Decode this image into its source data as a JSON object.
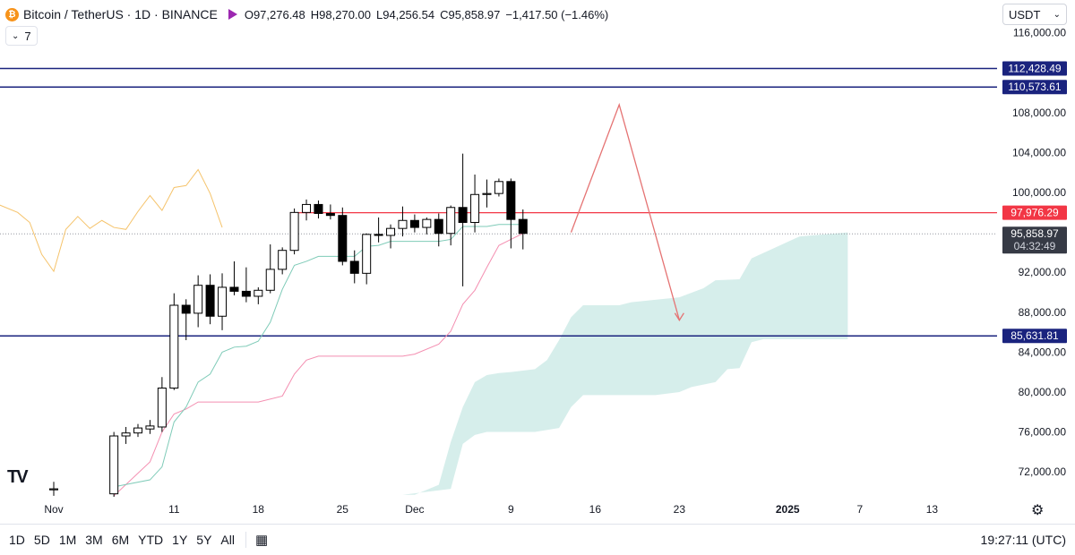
{
  "header": {
    "symbol": "Bitcoin / TetherUS · 1D · BINANCE",
    "open_label": "O",
    "open": "97,276.48",
    "high_label": "H",
    "high": "98,270.00",
    "low_label": "L",
    "low": "94,256.54",
    "close_label": "C",
    "close": "95,858.97",
    "change": "−1,417.50 (−1.46%)",
    "coin_glyph": "₿",
    "indicators_label": "7",
    "indicators_icon": "chevron-down-icon"
  },
  "currency": {
    "label": "USDT",
    "icon": "chevron-down-icon"
  },
  "toolbar": {
    "timeframes": [
      "1D",
      "5D",
      "1M",
      "3M",
      "6M",
      "YTD",
      "1Y",
      "5Y",
      "All"
    ],
    "calendar_icon": "calendar-range-icon",
    "clock": "19:27:11 (UTC)",
    "settings_icon": "gear-icon",
    "logo": "TV"
  },
  "colors": {
    "up_body": "#ffffff",
    "down_body": "#000000",
    "wick": "#000000",
    "horizontal_level": "#1a237e",
    "resistance": "#f23645",
    "tenkan": "#7fcbb8",
    "kijun": "#f48fb1",
    "chikou": "#f5c36b",
    "cloud": "#d6eeeb",
    "arrow": "#e57373",
    "price_badge": "#363a45"
  },
  "chart_data": {
    "type": "candlestick",
    "ylim": [
      69500,
      117500
    ],
    "y_ticks": [
      72000,
      76000,
      80000,
      84000,
      88000,
      92000,
      96000,
      100000,
      104000,
      108000,
      112000,
      116000
    ],
    "y_tick_labels": [
      "72,000.00",
      "76,000.00",
      "80,000.00",
      "84,000.00",
      "88,000.00",
      "92,000.00",
      "",
      "100,000.00",
      "104,000.00",
      "108,000.00",
      "",
      "116,000.00"
    ],
    "x_ticks": [
      {
        "label": "Nov",
        "day": 0
      },
      {
        "label": "11",
        "day": 10
      },
      {
        "label": "18",
        "day": 17
      },
      {
        "label": "25",
        "day": 24
      },
      {
        "label": "Dec",
        "day": 30
      },
      {
        "label": "9",
        "day": 38
      },
      {
        "label": "16",
        "day": 45
      },
      {
        "label": "23",
        "day": 52
      },
      {
        "label": "2025",
        "day": 61,
        "bold": true
      },
      {
        "label": "7",
        "day": 67
      },
      {
        "label": "13",
        "day": 73
      }
    ],
    "candles": [
      {
        "day": 0,
        "o": 70200,
        "h": 71000,
        "l": 69600,
        "c": 70300
      },
      {
        "day": 5,
        "o": 69800,
        "h": 76000,
        "l": 69500,
        "c": 75600
      },
      {
        "day": 6,
        "o": 75600,
        "h": 76500,
        "l": 74800,
        "c": 75900
      },
      {
        "day": 7,
        "o": 75900,
        "h": 76800,
        "l": 75500,
        "c": 76400
      },
      {
        "day": 8,
        "o": 76300,
        "h": 77200,
        "l": 75800,
        "c": 76600
      },
      {
        "day": 9,
        "o": 76500,
        "h": 81500,
        "l": 76000,
        "c": 80400
      },
      {
        "day": 10,
        "o": 80400,
        "h": 89900,
        "l": 80200,
        "c": 88700
      },
      {
        "day": 11,
        "o": 88700,
        "h": 89300,
        "l": 85200,
        "c": 87900
      },
      {
        "day": 12,
        "o": 87900,
        "h": 91700,
        "l": 86500,
        "c": 90700
      },
      {
        "day": 13,
        "o": 90700,
        "h": 91800,
        "l": 86800,
        "c": 87600
      },
      {
        "day": 14,
        "o": 87600,
        "h": 91900,
        "l": 86200,
        "c": 90500
      },
      {
        "day": 15,
        "o": 90500,
        "h": 93100,
        "l": 89700,
        "c": 90100
      },
      {
        "day": 16,
        "o": 90100,
        "h": 92500,
        "l": 89000,
        "c": 89600
      },
      {
        "day": 17,
        "o": 89600,
        "h": 90500,
        "l": 88800,
        "c": 90200
      },
      {
        "day": 18,
        "o": 90200,
        "h": 94800,
        "l": 89900,
        "c": 92300
      },
      {
        "day": 19,
        "o": 92300,
        "h": 94500,
        "l": 91800,
        "c": 94200
      },
      {
        "day": 20,
        "o": 94200,
        "h": 98400,
        "l": 93800,
        "c": 98000
      },
      {
        "day": 21,
        "o": 98000,
        "h": 99300,
        "l": 97200,
        "c": 98800
      },
      {
        "day": 22,
        "o": 98800,
        "h": 99200,
        "l": 97400,
        "c": 97900
      },
      {
        "day": 23,
        "o": 97900,
        "h": 98800,
        "l": 97300,
        "c": 97700
      },
      {
        "day": 24,
        "o": 97700,
        "h": 98500,
        "l": 92700,
        "c": 93100
      },
      {
        "day": 25,
        "o": 93100,
        "h": 94200,
        "l": 90900,
        "c": 91900
      },
      {
        "day": 26,
        "o": 91900,
        "h": 95900,
        "l": 90800,
        "c": 95800
      },
      {
        "day": 27,
        "o": 95800,
        "h": 97500,
        "l": 95000,
        "c": 95700
      },
      {
        "day": 28,
        "o": 95700,
        "h": 96800,
        "l": 94400,
        "c": 96400
      },
      {
        "day": 29,
        "o": 96400,
        "h": 98600,
        "l": 95600,
        "c": 97200
      },
      {
        "day": 30,
        "o": 97200,
        "h": 97800,
        "l": 96000,
        "c": 96500
      },
      {
        "day": 31,
        "o": 96500,
        "h": 97500,
        "l": 95800,
        "c": 97300
      },
      {
        "day": 32,
        "o": 97300,
        "h": 97900,
        "l": 94600,
        "c": 95900
      },
      {
        "day": 33,
        "o": 95900,
        "h": 98700,
        "l": 94700,
        "c": 98500
      },
      {
        "day": 34,
        "o": 98500,
        "h": 103900,
        "l": 90600,
        "c": 97000
      },
      {
        "day": 35,
        "o": 97000,
        "h": 101800,
        "l": 96000,
        "c": 99800
      },
      {
        "day": 36,
        "o": 99800,
        "h": 101300,
        "l": 98500,
        "c": 99900
      },
      {
        "day": 37,
        "o": 99900,
        "h": 101400,
        "l": 99600,
        "c": 101100
      },
      {
        "day": 38,
        "o": 101100,
        "h": 101400,
        "l": 94400,
        "c": 97300
      },
      {
        "day": 39,
        "o": 97300,
        "h": 98300,
        "l": 94300,
        "c": 95900
      }
    ],
    "levels": [
      {
        "name": "level-112428",
        "value": 112428.49,
        "label": "112,428.49"
      },
      {
        "name": "level-110573",
        "value": 110573.61,
        "label": "110,573.61"
      },
      {
        "name": "level-85631",
        "value": 85631.81,
        "label": "85,631.81"
      }
    ],
    "resistance": {
      "value": 97976.29,
      "label": "97,976.29",
      "from_day": 20
    },
    "current_price": {
      "value": 95858.97,
      "label": "95,858.97",
      "countdown": "04:32:49"
    },
    "tenkan": [
      [
        5,
        70500
      ],
      [
        8,
        71200
      ],
      [
        9,
        72500
      ],
      [
        10,
        77000
      ],
      [
        11,
        78500
      ],
      [
        12,
        81000
      ],
      [
        13,
        81800
      ],
      [
        14,
        84000
      ],
      [
        15,
        84500
      ],
      [
        16,
        84600
      ],
      [
        17,
        85100
      ],
      [
        18,
        87000
      ],
      [
        19,
        90300
      ],
      [
        20,
        92700
      ],
      [
        21,
        93100
      ],
      [
        22,
        93600
      ],
      [
        23,
        93600
      ],
      [
        24,
        93600
      ],
      [
        25,
        93600
      ],
      [
        26,
        94600
      ],
      [
        27,
        94700
      ],
      [
        28,
        95100
      ],
      [
        29,
        95100
      ],
      [
        30,
        95100
      ],
      [
        31,
        95100
      ],
      [
        32,
        95100
      ],
      [
        33,
        95300
      ],
      [
        34,
        96600
      ],
      [
        35,
        96600
      ],
      [
        36,
        96600
      ],
      [
        37,
        96800
      ],
      [
        38,
        96800
      ],
      [
        39,
        96800
      ]
    ],
    "kijun": [
      [
        5,
        69600
      ],
      [
        8,
        73000
      ],
      [
        9,
        76000
      ],
      [
        10,
        77800
      ],
      [
        11,
        78300
      ],
      [
        12,
        79000
      ],
      [
        17,
        79000
      ],
      [
        19,
        79600
      ],
      [
        20,
        81800
      ],
      [
        21,
        83200
      ],
      [
        22,
        83600
      ],
      [
        29,
        83600
      ],
      [
        30,
        83800
      ],
      [
        32,
        84800
      ],
      [
        33,
        86100
      ],
      [
        34,
        88800
      ],
      [
        35,
        90200
      ],
      [
        36,
        92500
      ],
      [
        37,
        94700
      ],
      [
        38,
        95300
      ],
      [
        39,
        95900
      ]
    ],
    "chikou": [
      [
        -5,
        99000
      ],
      [
        -3,
        98000
      ],
      [
        -2,
        97000
      ],
      [
        -1,
        93800
      ],
      [
        0,
        92100
      ],
      [
        1,
        96300
      ],
      [
        2,
        97600
      ],
      [
        3,
        96400
      ],
      [
        4,
        97200
      ],
      [
        5,
        96500
      ],
      [
        6,
        96300
      ],
      [
        7,
        98100
      ],
      [
        8,
        99700
      ],
      [
        9,
        98200
      ],
      [
        10,
        100500
      ],
      [
        11,
        100700
      ],
      [
        12,
        102300
      ],
      [
        13,
        99900
      ],
      [
        14,
        96500
      ]
    ],
    "cloud": {
      "upper": [
        [
          29,
          69700
        ],
        [
          30,
          69700
        ],
        [
          32,
          70700
        ],
        [
          33,
          75000
        ],
        [
          34,
          78500
        ],
        [
          35,
          81000
        ],
        [
          36,
          81700
        ],
        [
          37,
          81900
        ],
        [
          38,
          82000
        ],
        [
          40,
          82300
        ],
        [
          41,
          83200
        ],
        [
          42,
          85200
        ],
        [
          43,
          87500
        ],
        [
          44,
          88700
        ],
        [
          47,
          88700
        ],
        [
          48,
          89000
        ],
        [
          52,
          89500
        ],
        [
          54,
          90400
        ],
        [
          55,
          91200
        ],
        [
          57,
          91300
        ],
        [
          58,
          93400
        ],
        [
          60,
          94500
        ],
        [
          62,
          95600
        ],
        [
          66,
          96000
        ]
      ],
      "lower": [
        [
          29,
          69700
        ],
        [
          33,
          70300
        ],
        [
          34,
          74800
        ],
        [
          35,
          75700
        ],
        [
          36,
          76000
        ],
        [
          40,
          76000
        ],
        [
          42,
          76400
        ],
        [
          43,
          78500
        ],
        [
          44,
          79700
        ],
        [
          50,
          79700
        ],
        [
          52,
          80000
        ],
        [
          53,
          80500
        ],
        [
          55,
          81000
        ],
        [
          56,
          82300
        ],
        [
          57,
          82400
        ],
        [
          58,
          85000
        ],
        [
          59,
          85300
        ],
        [
          66,
          85300
        ]
      ]
    },
    "projection": [
      [
        43,
        96000
      ],
      [
        47,
        108800
      ],
      [
        52,
        87200
      ]
    ]
  }
}
